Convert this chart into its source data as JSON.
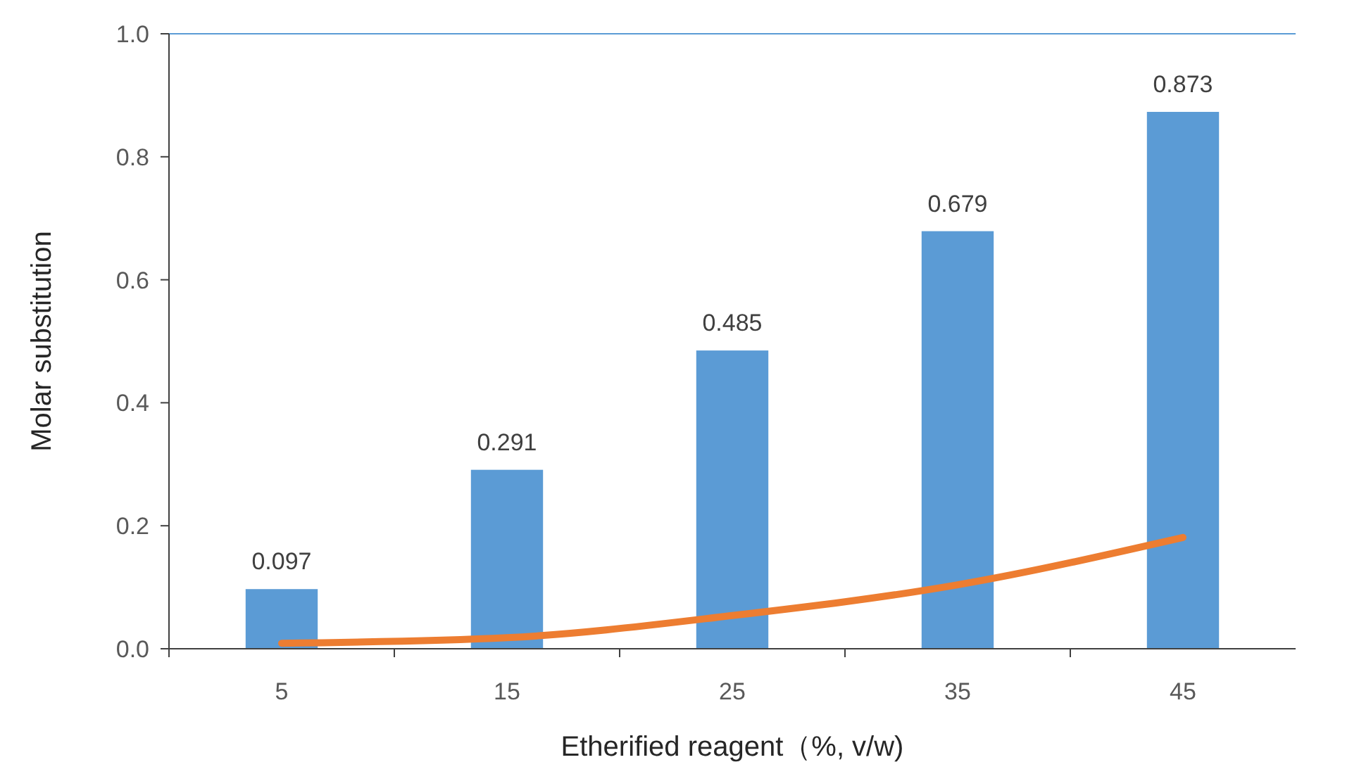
{
  "chart_data": {
    "type": "bar",
    "xlabel": "Etherified reagent（%, v/w)",
    "ylabel": "Molar substitution",
    "categories": [
      "5",
      "15",
      "25",
      "35",
      "45"
    ],
    "ylim": [
      0,
      1.0
    ],
    "yticks": [
      {
        "value": 0,
        "label": "0.0"
      },
      {
        "value": 0.2,
        "label": "0.2"
      },
      {
        "value": 0.4,
        "label": "0.4"
      },
      {
        "value": 0.6,
        "label": "0.6"
      },
      {
        "value": 0.8,
        "label": "0.8"
      },
      {
        "value": 1.0,
        "label": "1.0"
      }
    ],
    "series": [
      {
        "color": "#5b9bd5",
        "values": [
          0.097,
          0.291,
          0.485,
          0.679,
          0.873
        ],
        "value_labels": [
          "0.097",
          "0.291",
          "0.485",
          "0.679",
          "0.873"
        ]
      },
      {
        "type": "line",
        "color": "#ed7d31",
        "values": [
          0.009,
          0.018,
          0.054,
          0.104,
          0.181
        ],
        "marker": "none"
      }
    ]
  }
}
